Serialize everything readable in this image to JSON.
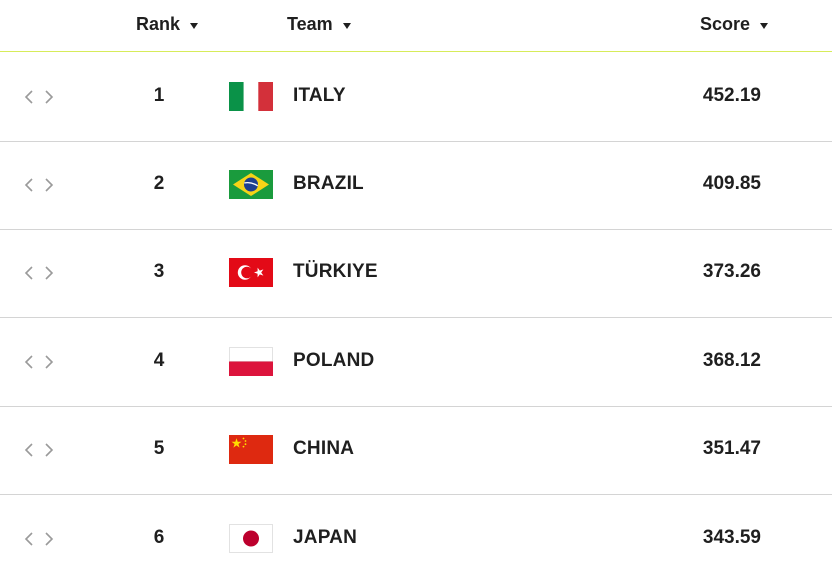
{
  "header": {
    "rank_label": "Rank",
    "team_label": "Team",
    "score_label": "Score"
  },
  "rows": [
    {
      "rank": "1",
      "team": "ITALY",
      "score": "452.19",
      "flag": "italy-flag"
    },
    {
      "rank": "2",
      "team": "BRAZIL",
      "score": "409.85",
      "flag": "brazil-flag"
    },
    {
      "rank": "3",
      "team": "TÜRKIYE",
      "score": "373.26",
      "flag": "turkiye-flag"
    },
    {
      "rank": "4",
      "team": "POLAND",
      "score": "368.12",
      "flag": "poland-flag"
    },
    {
      "rank": "5",
      "team": "CHINA",
      "score": "351.47",
      "flag": "china-flag"
    },
    {
      "rank": "6",
      "team": "JAPAN",
      "score": "343.59",
      "flag": "japan-flag"
    }
  ],
  "colors": {
    "header_rule": "#d7ec5a",
    "row_divider": "#d4d4d4",
    "expand_icon": "#9a9a9a",
    "text": "#1f1f1f"
  }
}
